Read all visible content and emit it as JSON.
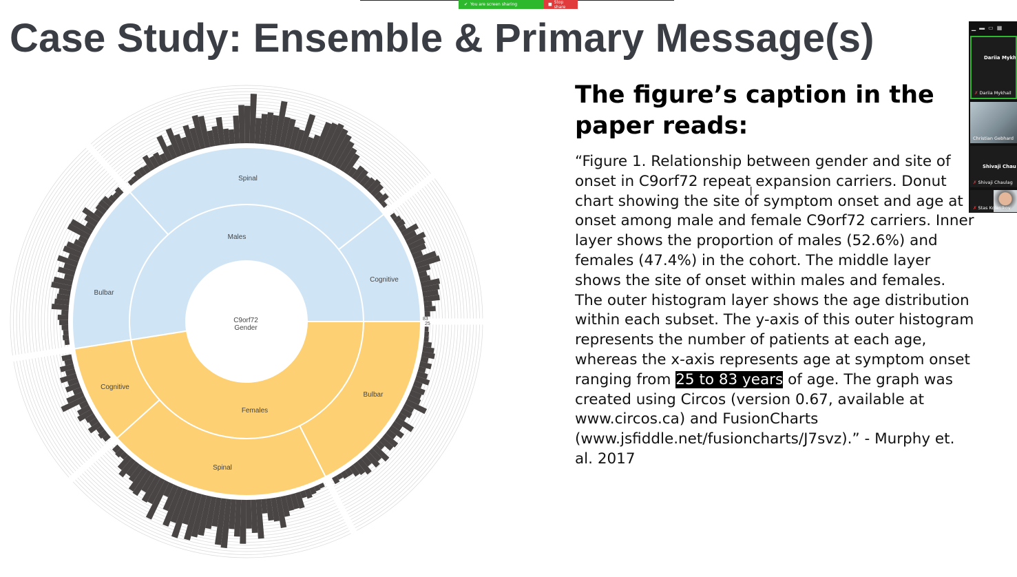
{
  "share_bar": {
    "status": "You are screen sharing",
    "stop": "Stop share",
    "status_color": "#2eb82e",
    "stop_color": "#e23b3b"
  },
  "slide": {
    "title": "Case Study: Ensemble & Primary Message(s)"
  },
  "figure": {
    "center_label_1": "C9orf72",
    "center_label_2": "Gender",
    "inner_ring": [
      {
        "label": "Males",
        "percent": 52.6,
        "color": "#cfe4f5"
      },
      {
        "label": "Females",
        "percent": 47.4,
        "color": "#fcd073"
      }
    ],
    "middle_ring": {
      "males": [
        {
          "label": "Spinal"
        },
        {
          "label": "Cognitive"
        },
        {
          "label": "Bulbar"
        }
      ],
      "females": [
        {
          "label": "Bulbar"
        },
        {
          "label": "Spinal"
        },
        {
          "label": "Cognitive"
        }
      ]
    },
    "age_ticks": [
      "25",
      "83"
    ],
    "histogram_color": "#4a4545"
  },
  "caption": {
    "title": "The figure’s caption in the paper reads:",
    "text_before": "“Figure 1. Relationship between gender and site of onset in C9orf72 repeat expansion carriers. Donut chart showing the site of symptom onset and age at onset among male and female C9orf72 carriers. Inner layer shows the proportion of males (52.6%) and females (47.4%) in the cohort. The middle layer shows the site of onset within males and females. The outer histogram layer shows the age distribution within each subset. The y-axis of this outer histogram represents the number of patients at each age, whereas the x-axis represents age at symptom onset ranging from ",
    "highlight": "25 to 83 years",
    "text_after": " of age. The graph was created using Circos (version 0.67, available at www.circos.ca) and FusionCharts (www.jsfiddle.net/fusioncharts/J7svz).” - Murphy et. al. 2017"
  },
  "participants": [
    {
      "big_name": "Dariia Mykha",
      "name": "Dariia Mykhail"
    },
    {
      "name": "Christian Gebhard"
    },
    {
      "big_name": "Shivaji Chau",
      "name": "Shivaji Chaulag"
    },
    {
      "name": "Stas Kolenikov"
    }
  ]
}
